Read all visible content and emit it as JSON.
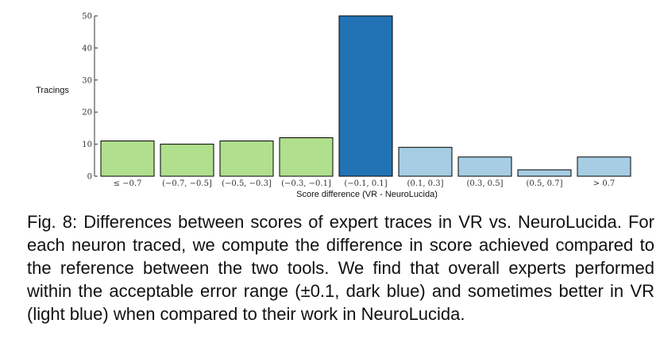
{
  "chart_data": {
    "type": "bar",
    "categories": [
      "≤ −0.7",
      "(−0.7, −0.5]",
      "(−0.5, −0.3]",
      "(−0.3, −0.1]",
      "(−0.1, 0.1]",
      "(0.1, 0.3]",
      "(0.3, 0.5]",
      "(0.5, 0.7]",
      "> 0.7"
    ],
    "values": [
      11,
      10,
      11,
      12,
      50,
      9,
      6,
      2,
      6
    ],
    "bar_colors": [
      "#b0df8d",
      "#b0df8d",
      "#b0df8d",
      "#b0df8d",
      "#2273b5",
      "#a6cde3",
      "#a6cde3",
      "#a6cde3",
      "#a6cde3"
    ],
    "title": "",
    "xlabel": "Score difference (VR - NeuroLucida)",
    "ylabel": "Tracings",
    "ylim": [
      0,
      50
    ],
    "yticks": [
      0,
      10,
      20,
      30,
      40,
      50
    ],
    "grid": false
  },
  "caption": {
    "text": "Fig. 8: Differences between scores of expert traces in VR vs. NeuroLucida. For each neuron traced, we compute the difference in score achieved compared to the reference between the two tools. We find that overall experts performed within the acceptable error range (±0.1, dark blue) and sometimes better in VR (light blue) when compared to their work in NeuroLucida."
  }
}
